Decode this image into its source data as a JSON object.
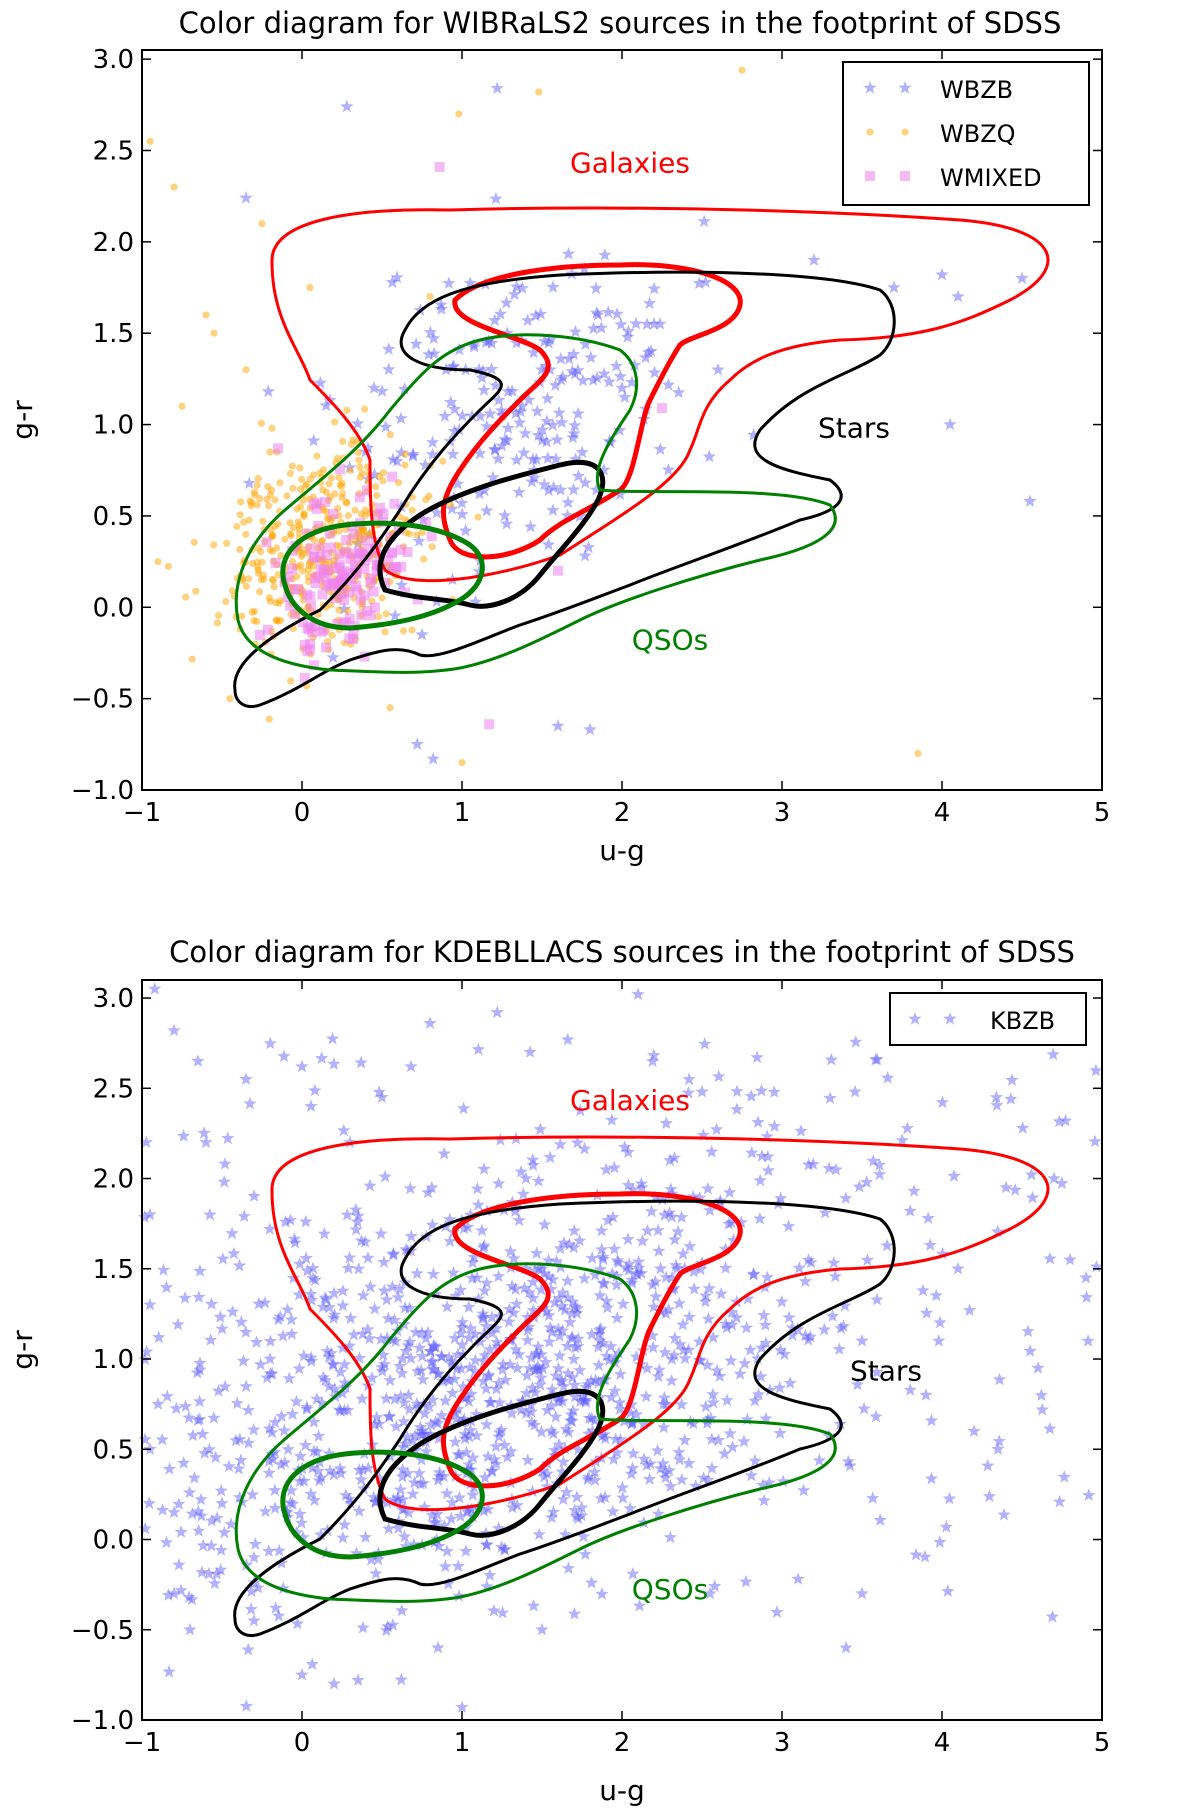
{
  "chart_data": [
    {
      "type": "scatter",
      "title": "Color diagram for WIBRaLS2 sources in the footprint of SDSS",
      "xlabel": "u-g",
      "ylabel": "g-r",
      "xlim": [
        -1,
        5
      ],
      "ylim": [
        -1.0,
        3.05
      ],
      "xticks": [
        "−1",
        "0",
        "1",
        "2",
        "3",
        "4",
        "5"
      ],
      "yticks": [
        "−1.0",
        "−0.5",
        "0.0",
        "0.5",
        "1.0",
        "1.5",
        "2.0",
        "2.5",
        "3.0"
      ],
      "legend": {
        "placement": "top-right",
        "entries": [
          "WBZB",
          "WBZQ",
          "WMIXED"
        ]
      },
      "grid": false,
      "region_labels": [
        {
          "text": "Galaxies",
          "x": 2.05,
          "y": 2.38,
          "color": "#ff0000"
        },
        {
          "text": "Stars",
          "x": 3.45,
          "y": 0.93,
          "color": "#000000"
        },
        {
          "text": "QSOs",
          "x": 2.3,
          "y": -0.23,
          "color": "#008000"
        }
      ],
      "series": [
        {
          "name": "WBZB",
          "marker": "star",
          "color": "#5555ff",
          "points": [
            [
              1.22,
              2.84
            ],
            [
              0.28,
              2.74
            ],
            [
              -0.35,
              2.24
            ],
            [
              0.82,
              -0.83
            ],
            [
              1.6,
              -0.65
            ],
            [
              1.8,
              -0.67
            ],
            [
              0.72,
              -0.75
            ],
            [
              4.55,
              0.58
            ],
            [
              4.05,
              1.0
            ],
            [
              4.0,
              1.82
            ],
            [
              4.5,
              1.8
            ],
            [
              4.1,
              1.7
            ],
            [
              3.7,
              1.75
            ],
            [
              2.2,
              1.55
            ],
            [
              2.6,
              1.3
            ],
            [
              3.2,
              1.9
            ],
            [
              0.95,
              0.6
            ],
            [
              1.45,
              0.75
            ],
            [
              1.7,
              0.95
            ],
            [
              1.25,
              1.05
            ],
            [
              0.55,
              0.2
            ],
            [
              0.75,
              -0.15
            ],
            [
              1.15,
              1.45
            ],
            [
              1.55,
              1.3
            ],
            [
              2.0,
              1.2
            ],
            [
              0.45,
              1.2
            ],
            [
              0.35,
              0.35
            ],
            [
              0.62,
              0.55
            ],
            [
              0.9,
              1.3
            ],
            [
              1.85,
              1.6
            ]
          ],
          "cluster": {
            "cx": 1.35,
            "cy": 1.1,
            "sx": 0.55,
            "sy": 0.45,
            "n": 230
          }
        },
        {
          "name": "WBZQ",
          "marker": "circle",
          "color": "#ffa500",
          "points": [
            [
              2.75,
              2.94
            ],
            [
              1.48,
              2.82
            ],
            [
              0.98,
              2.7
            ],
            [
              -0.8,
              2.3
            ],
            [
              -0.95,
              2.55
            ],
            [
              -0.25,
              2.1
            ],
            [
              -0.55,
              1.5
            ],
            [
              -0.9,
              0.25
            ],
            [
              -0.45,
              -0.5
            ],
            [
              0.55,
              -0.55
            ],
            [
              3.85,
              -0.8
            ],
            [
              1.0,
              -0.85
            ],
            [
              -0.75,
              1.1
            ],
            [
              -0.35,
              1.3
            ],
            [
              0.05,
              1.75
            ],
            [
              -0.6,
              1.6
            ],
            [
              0.25,
              0.6
            ],
            [
              0.8,
              1.7
            ],
            [
              -0.2,
              0.85
            ],
            [
              0.15,
              0.0
            ]
          ],
          "cluster": {
            "cx": 0.1,
            "cy": 0.3,
            "sx": 0.3,
            "sy": 0.25,
            "n": 420
          }
        },
        {
          "name": "WMIXED",
          "marker": "square",
          "color": "#ee82ee",
          "points": [
            [
              0.86,
              2.41
            ],
            [
              1.17,
              -0.64
            ],
            [
              -0.15,
              0.87
            ],
            [
              2.25,
              1.09
            ],
            [
              1.6,
              0.2
            ],
            [
              0.05,
              -0.23
            ],
            [
              0.15,
              -0.22
            ],
            [
              0.05,
              -0.2
            ]
          ],
          "cluster": {
            "cx": 0.3,
            "cy": 0.2,
            "sx": 0.2,
            "sy": 0.15,
            "n": 150
          }
        }
      ]
    },
    {
      "type": "scatter",
      "title": "Color diagram for KDEBLLACS sources in the footprint of SDSS",
      "xlabel": "u-g",
      "ylabel": "g-r",
      "xlim": [
        -1,
        5
      ],
      "ylim": [
        -1.0,
        3.1
      ],
      "xticks": [
        "−1",
        "0",
        "1",
        "2",
        "3",
        "4",
        "5"
      ],
      "yticks": [
        "−1.0",
        "−0.5",
        "0.0",
        "0.5",
        "1.0",
        "1.5",
        "2.0",
        "2.5",
        "3.0"
      ],
      "legend": {
        "placement": "top-right",
        "entries": [
          "KBZB"
        ]
      },
      "grid": false,
      "region_labels": [
        {
          "text": "Galaxies",
          "x": 2.05,
          "y": 2.38,
          "color": "#ff0000"
        },
        {
          "text": "Stars",
          "x": 3.65,
          "y": 0.88,
          "color": "#000000"
        },
        {
          "text": "QSOs",
          "x": 2.3,
          "y": -0.33,
          "color": "#008000"
        }
      ],
      "series": [
        {
          "name": "KBZB",
          "marker": "star",
          "color": "#5555ff",
          "points": [
            [
              2.1,
              3.02
            ],
            [
              -0.92,
              3.05
            ],
            [
              -0.8,
              2.82
            ],
            [
              0.8,
              2.86
            ],
            [
              1.22,
              2.92
            ],
            [
              -0.65,
              2.65
            ],
            [
              -0.35,
              2.55
            ],
            [
              0.0,
              2.62
            ],
            [
              0.5,
              2.45
            ],
            [
              4.8,
              1.55
            ],
            [
              4.9,
              1.45
            ],
            [
              4.6,
              0.95
            ],
            [
              3.9,
              0.8
            ],
            [
              4.2,
              0.6
            ],
            [
              4.35,
              0.5
            ],
            [
              3.5,
              -0.3
            ],
            [
              3.4,
              -0.6
            ],
            [
              0.85,
              -0.6
            ],
            [
              1.0,
              -0.93
            ],
            [
              0.2,
              -0.8
            ],
            [
              0.35,
              -0.78
            ],
            [
              -0.3,
              -0.45
            ],
            [
              -0.8,
              0.15
            ],
            [
              -0.9,
              0.75
            ],
            [
              -0.95,
              1.3
            ],
            [
              -0.95,
              1.8
            ],
            [
              -0.6,
              2.2
            ],
            [
              0.0,
              -0.75
            ],
            [
              1.5,
              -0.5
            ],
            [
              2.55,
              -0.3
            ],
            [
              4.4,
              1.95
            ],
            [
              4.7,
              2.0
            ],
            [
              4.1,
              1.5
            ],
            [
              3.5,
              1.1
            ],
            [
              -0.95,
              0.5
            ],
            [
              -0.8,
              -0.3
            ],
            [
              2.3,
              2.1
            ],
            [
              2.5,
              2.48
            ],
            [
              1.4,
              2.0
            ],
            [
              0.3,
              2.2
            ],
            [
              -0.2,
              1.0
            ],
            [
              -0.5,
              0.2
            ],
            [
              -0.3,
              -0.1
            ],
            [
              -0.7,
              -0.5
            ]
          ],
          "cluster": {
            "cx": 1.2,
            "cy": 0.9,
            "sx": 1.1,
            "sy": 0.6,
            "n": 1050
          },
          "background": {
            "n": 190
          }
        }
      ]
    }
  ]
}
